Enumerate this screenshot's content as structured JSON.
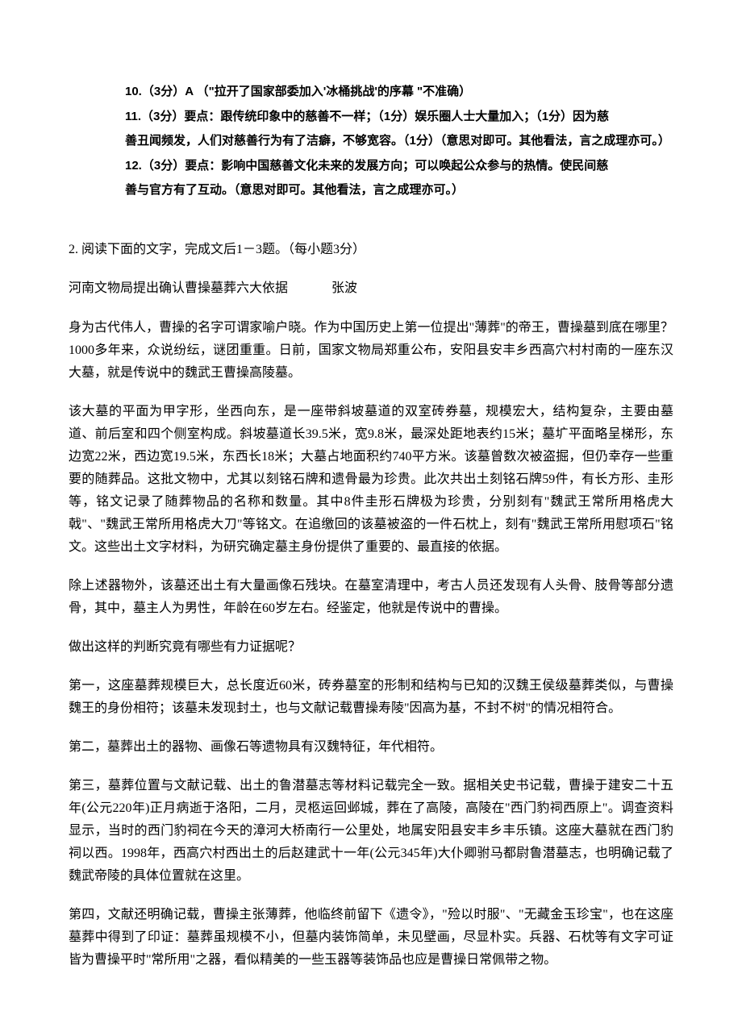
{
  "answers": {
    "line1": "10.（3分）A （\"拉开了国家部委加入'冰桶挑战'的序幕 \"不准确）",
    "line2": "11.（3分）要点：跟传统印象中的慈善不一样；（1分）娱乐圈人士大量加入；（1分）因为慈",
    "line3": "善丑闻频发，人们对慈善行为有了洁癖，不够宽容。（1分）（意思对即可。其他看法，言之成理亦可。）",
    "line4": "12.（3分）要点：影响中国慈善文化未来的发展方向；可以唤起公众参与的热情。使民间慈",
    "line5": "善与官方有了互动。（意思对即可。其他看法，言之成理亦可。）"
  },
  "question": {
    "heading": "2. 阅读下面的文字，完成文后1－3题。（每小题3分）",
    "title": "河南文物局提出确认曹操墓葬六大依据",
    "author": "张波"
  },
  "paragraphs": {
    "p1": "身为古代伟人，曹操的名字可谓家喻户晓。作为中国历史上第一位提出\"薄葬\"的帝王，曹操墓到底在哪里？1000多年来，众说纷纭，谜团重重。日前，国家文物局郑重公布，安阳县安丰乡西高穴村村南的一座东汉大墓，就是传说中的魏武王曹操高陵墓。",
    "p2": "该大墓的平面为甲字形，坐西向东，是一座带斜坡墓道的双室砖券墓，规模宏大，结构复杂，主要由墓道、前后室和四个侧室构成。斜坡墓道长39.5米，宽9.8米，最深处距地表约15米；墓圹平面略呈梯形，东边宽22米，西边宽19.5米，东西长18米；大墓占地面积约740平方米。该墓曾数次被盗掘，但仍幸存一些重要的随葬品。这批文物中，尤其以刻铭石牌和遗骨最为珍贵。此次共出土刻铭石牌59件，有长方形、圭形等，铭文记录了随葬物品的名称和数量。其中8件圭形石牌极为珍贵，分别刻有\"魏武王常所用格虎大戟\"、\"魏武王常所用格虎大刀\"等铭文。在追缴回的该墓被盗的一件石枕上，刻有\"魏武王常所用慰项石\"铭文。这些出土文字材料，为研究确定墓主身份提供了重要的、最直接的依据。",
    "p3": "除上述器物外，该墓还出土有大量画像石残块。在墓室清理中，考古人员还发现有人头骨、肢骨等部分遗骨，其中，墓主人为男性，年龄在60岁左右。经鉴定，他就是传说中的曹操。",
    "p4": "做出这样的判断究竟有哪些有力证据呢？",
    "p5": "第一，这座墓葬规模巨大，总长度近60米，砖券墓室的形制和结构与已知的汉魏王侯级墓葬类似，与曹操魏王的身份相符；该墓未发现封土，也与文献记载曹操寿陵\"因高为基，不封不树\"的情况相符合。",
    "p6": "第二，墓葬出土的器物、画像石等遗物具有汉魏特征，年代相符。",
    "p7": "第三，墓葬位置与文献记载、出土的鲁潜墓志等材料记载完全一致。据相关史书记载，曹操于建安二十五年(公元220年)正月病逝于洛阳，二月，灵柩运回邺城，葬在了高陵，高陵在\"西门豹祠西原上\"。调查资料显示，当时的西门豹祠在今天的漳河大桥南行一公里处，地属安阳县安丰乡丰乐镇。这座大墓就在西门豹祠以西。1998年，西高穴村西出土的后赵建武十一年(公元345年)大仆卿驸马都尉鲁潜墓志，也明确记载了魏武帝陵的具体位置就在这里。",
    "p8": "第四，文献还明确记载，曹操主张薄葬，他临终前留下《遗令》，\"殓以时服\"、\"无藏金玉珍宝\"，也在这座墓葬中得到了印证：墓葬虽规模不小，但墓内装饰简单，未见壁画，尽显朴实。兵器、石枕等有文字可证皆为曹操平时\"常所用\"之器，看似精美的一些玉器等装饰品也应是曹操日常佩带之物。"
  }
}
